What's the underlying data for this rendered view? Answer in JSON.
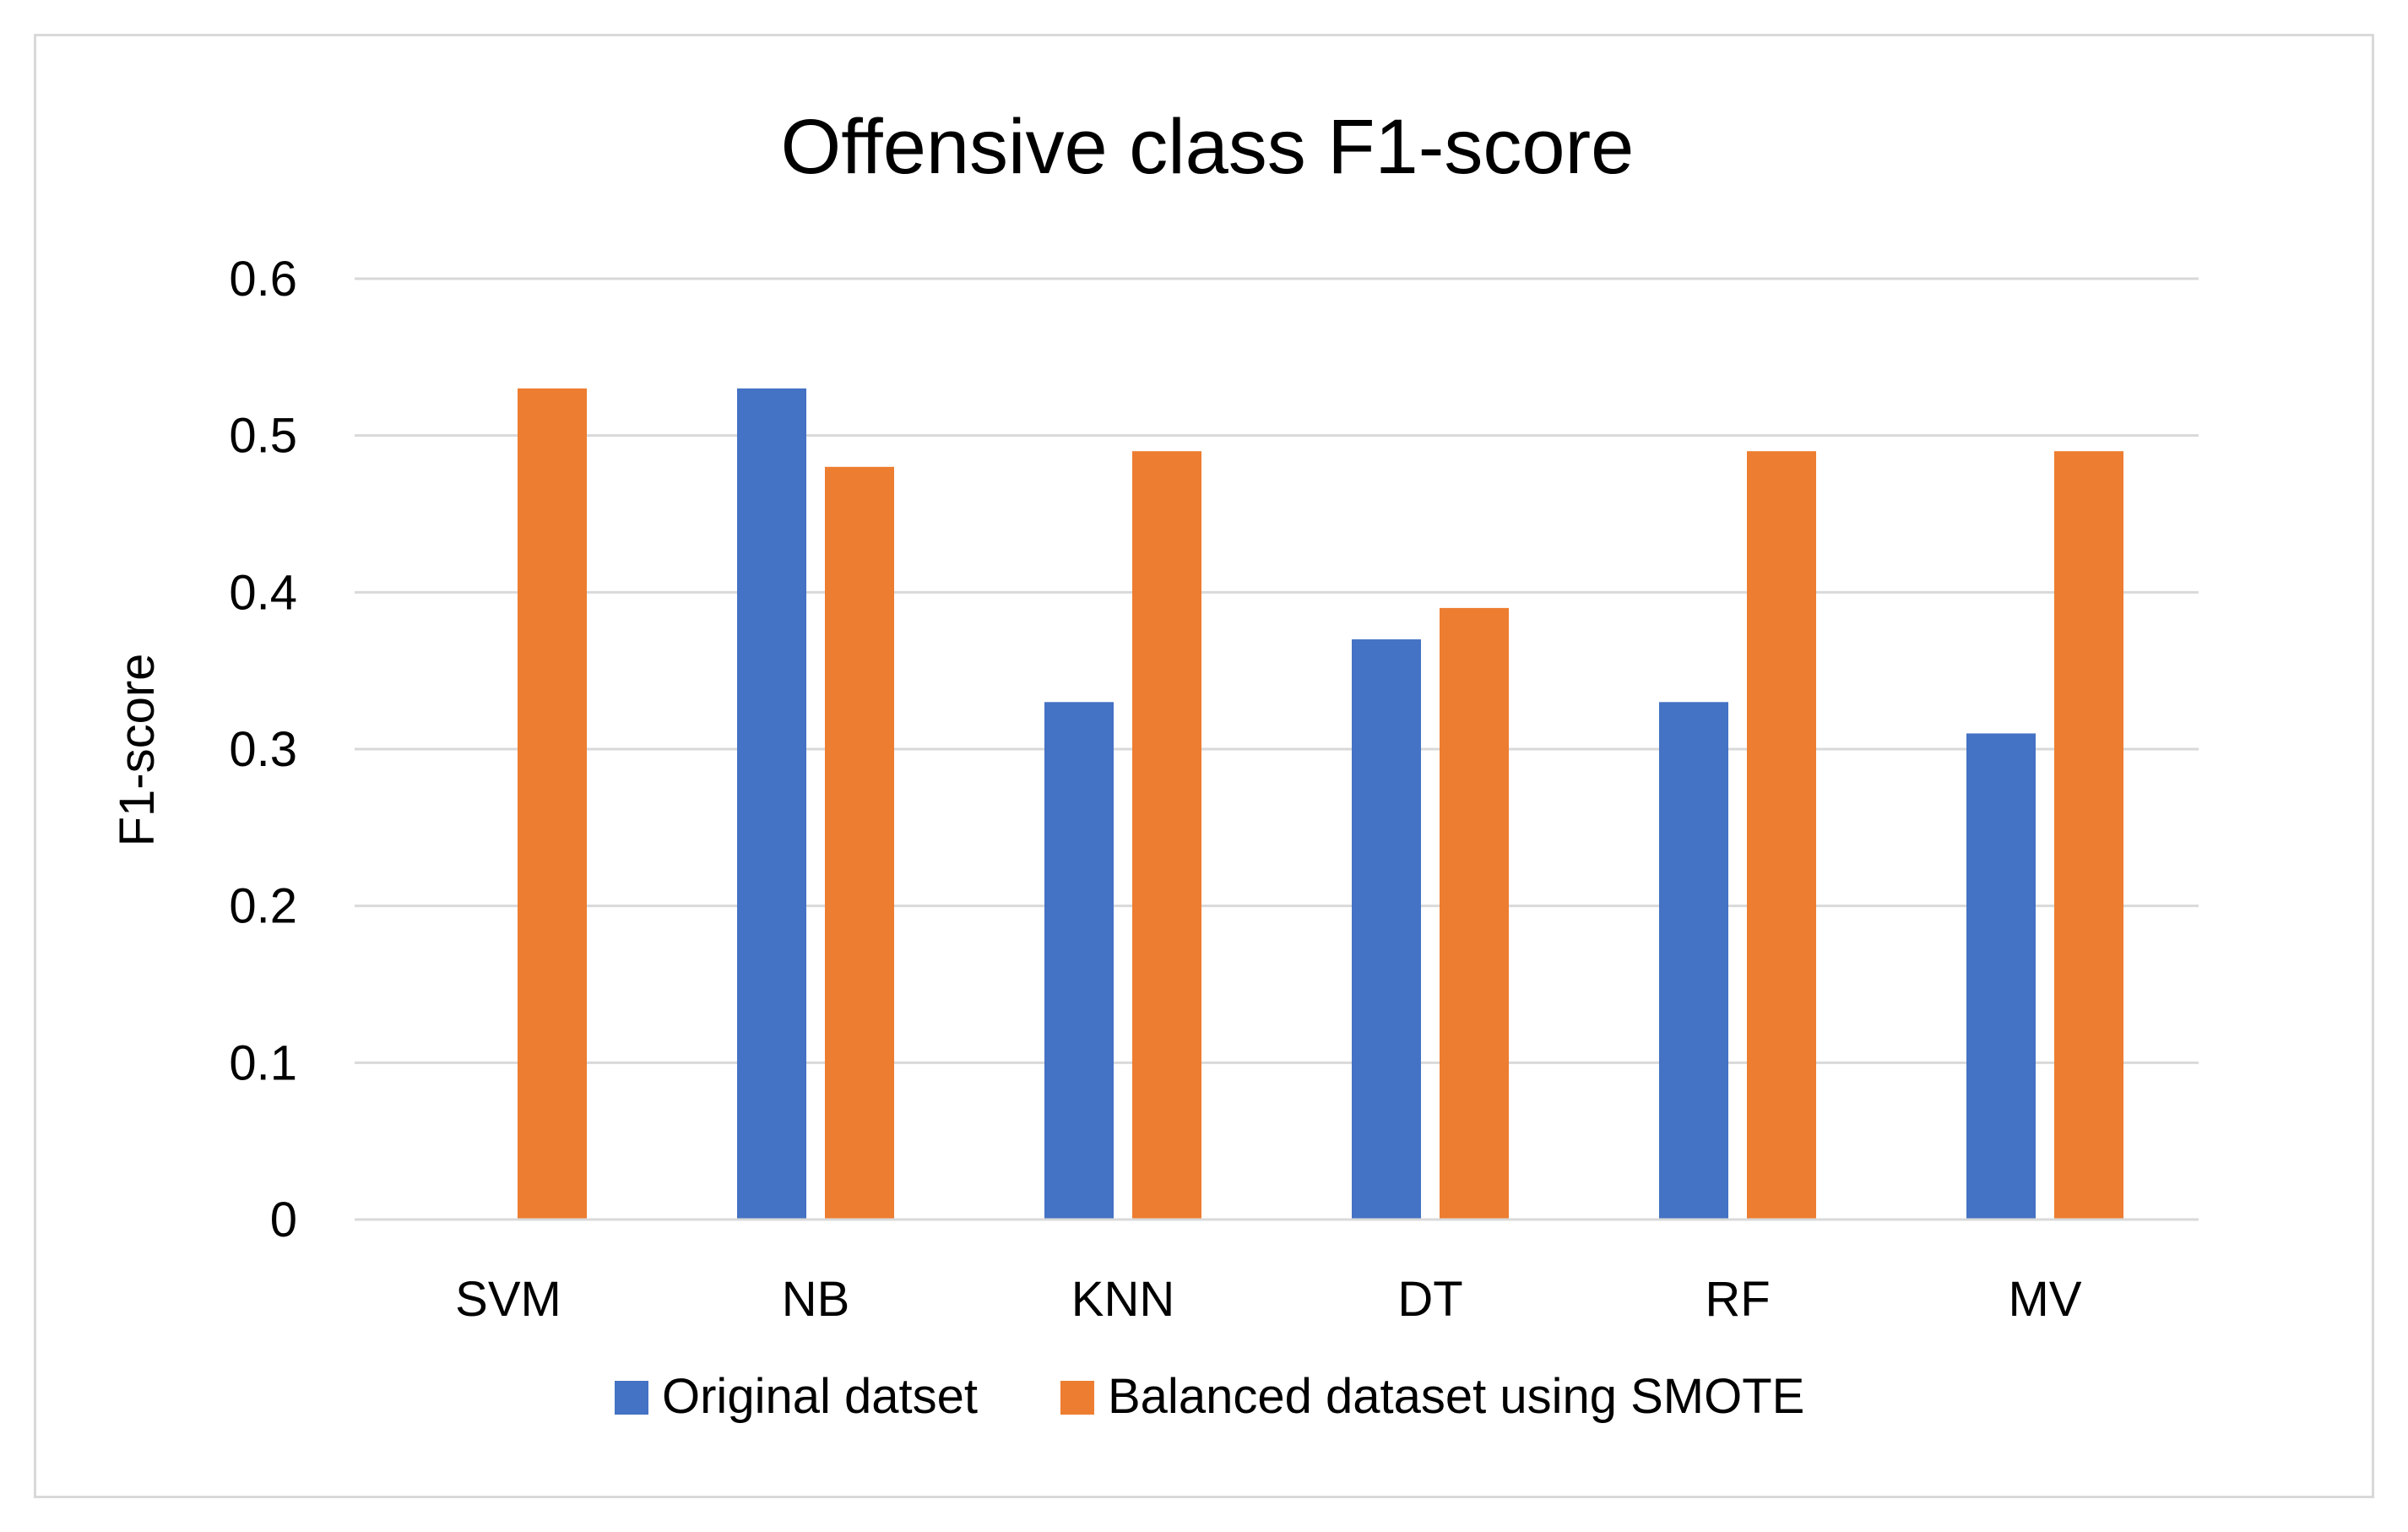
{
  "chart_data": {
    "type": "bar",
    "title": "Offensive class F1-score",
    "xlabel": "",
    "ylabel": "F1-score",
    "ylim": [
      0,
      0.6
    ],
    "yticks": [
      "0",
      "0.1",
      "0.2",
      "0.3",
      "0.4",
      "0.5",
      "0.6"
    ],
    "grid": true,
    "legend_position": "bottom",
    "categories": [
      "SVM",
      "NB",
      "KNN",
      "DT",
      "RF",
      "MV"
    ],
    "series": [
      {
        "name": "Original datset",
        "color": "#4472c4",
        "values": [
          0,
          0.53,
          0.33,
          0.37,
          0.33,
          0.31
        ]
      },
      {
        "name": "Balanced dataset using SMOTE",
        "color": "#ed7d31",
        "values": [
          0.53,
          0.48,
          0.49,
          0.39,
          0.49,
          0.49
        ]
      }
    ]
  }
}
